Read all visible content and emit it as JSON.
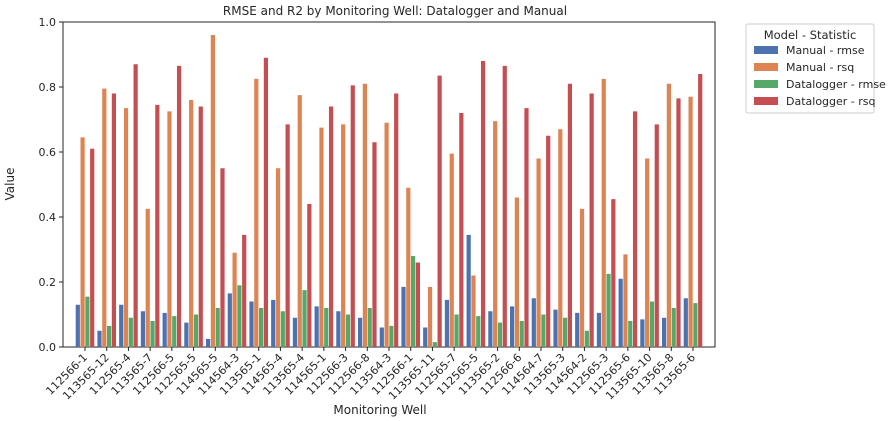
{
  "chart_data": {
    "type": "bar",
    "title": "RMSE and R2 by Monitoring Well: Datalogger and Manual",
    "xlabel": "Monitoring Well",
    "ylabel": "Value",
    "ylim": [
      0,
      1.0
    ],
    "yticks": [
      "0.0",
      "0.2",
      "0.4",
      "0.6",
      "0.8",
      "1.0"
    ],
    "grid": false,
    "legend": {
      "title": "Model - Statistic",
      "placement": "outside-top-right"
    },
    "categories": [
      "112566-1",
      "113565-12",
      "112565-4",
      "113565-7",
      "112566-5",
      "112565-5",
      "114565-5",
      "114564-3",
      "113565-1",
      "114565-4",
      "113565-4",
      "114565-1",
      "112566-3",
      "112566-8",
      "113564-3",
      "112566-1",
      "113565-11",
      "112565-7",
      "112565-5",
      "113565-2",
      "112566-6",
      "114564-7",
      "113565-3",
      "114564-2",
      "112565-3",
      "112565-6",
      "113565-10",
      "113565-8",
      "113565-6"
    ],
    "series": [
      {
        "name": "Manual - rmse",
        "color": "#4c72b0",
        "values": [
          0.13,
          0.05,
          0.13,
          0.11,
          0.105,
          0.075,
          0.025,
          0.165,
          0.14,
          0.145,
          0.09,
          0.125,
          0.11,
          0.09,
          0.06,
          0.185,
          0.06,
          0.145,
          0.345,
          0.11,
          0.125,
          0.15,
          0.115,
          0.105,
          0.105,
          0.21,
          0.085,
          0.09,
          0.15
        ]
      },
      {
        "name": "Manual - rsq",
        "color": "#dd8452",
        "values": [
          0.645,
          0.795,
          0.735,
          0.425,
          0.725,
          0.76,
          0.96,
          0.29,
          0.825,
          0.55,
          0.775,
          0.675,
          0.685,
          0.81,
          0.69,
          0.49,
          0.185,
          0.595,
          0.22,
          0.695,
          0.46,
          0.58,
          0.67,
          0.425,
          0.825,
          0.285,
          0.58,
          0.81,
          0.77
        ]
      },
      {
        "name": "Datalogger - rmse",
        "color": "#55a868",
        "values": [
          0.155,
          0.065,
          0.09,
          0.08,
          0.095,
          0.1,
          0.12,
          0.19,
          0.12,
          0.11,
          0.175,
          0.12,
          0.1,
          0.12,
          0.065,
          0.28,
          0.015,
          0.1,
          0.095,
          0.075,
          0.08,
          0.1,
          0.09,
          0.05,
          0.225,
          0.08,
          0.14,
          0.12,
          0.135
        ]
      },
      {
        "name": "Datalogger - rsq",
        "color": "#c44e52",
        "values": [
          0.61,
          0.78,
          0.87,
          0.745,
          0.865,
          0.74,
          0.55,
          0.345,
          0.89,
          0.685,
          0.44,
          0.74,
          0.805,
          0.63,
          0.78,
          0.26,
          0.835,
          0.72,
          0.88,
          0.865,
          0.735,
          0.65,
          0.81,
          0.78,
          0.455,
          0.725,
          0.685,
          0.765,
          0.84
        ]
      }
    ]
  }
}
